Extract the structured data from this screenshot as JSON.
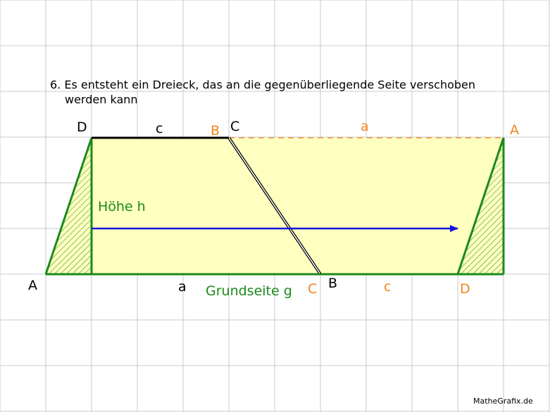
{
  "caption": {
    "line1": "6. Es entsteht ein Dreieck, das an die gegenüberliegende Seite verschoben",
    "line2": "werden kann"
  },
  "labels": {
    "vertex_A_left": "A",
    "vertex_D_top": "D",
    "side_c_top": "c",
    "vertex_B_top_orange": "B",
    "vertex_C_top": "C",
    "side_a_top_orange": "a",
    "vertex_A_right_orange": "A",
    "height": "Höhe h",
    "side_a_bottom": "a",
    "base_side": "Grundseite g",
    "vertex_C_bottom_orange": "C",
    "vertex_B_bottom": "B",
    "side_c_bottom_orange": "c",
    "vertex_D_bottom_orange": "D"
  },
  "credit": "MatheGrafix.de",
  "colors": {
    "grid": "#c8c8c8",
    "fill": "#ffffc0",
    "green": "#1a8a1a",
    "orange": "#f0841c",
    "blue": "#1010e0",
    "black": "#000000"
  }
}
